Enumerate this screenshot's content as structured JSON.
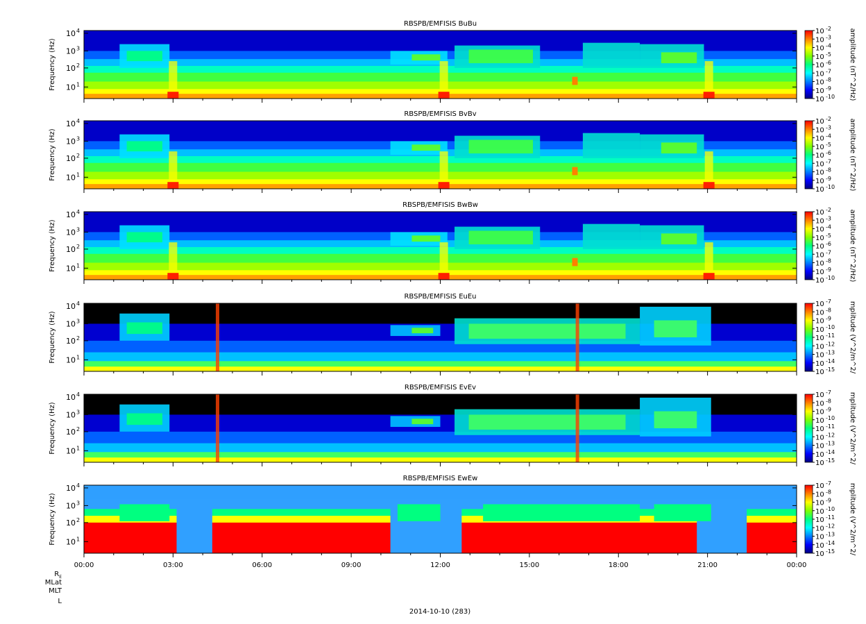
{
  "chart_data": [
    {
      "type": "heatmap",
      "title": "RBSPB/EMFISIS  BuBu",
      "ylabel": "Frequency (Hz)",
      "yscale": "log",
      "yticks": [
        "10",
        "10",
        "10",
        "10"
      ],
      "ytick_exponents": [
        "1",
        "2",
        "3",
        "4"
      ],
      "zlabel": "amplitude (nT^2/Hz)",
      "zticks": [
        "10",
        "10",
        "10",
        "10",
        "10",
        "10",
        "10",
        "10",
        "10"
      ],
      "ztick_exponents": [
        "-2",
        "-3",
        "-4",
        "-5",
        "-6",
        "-7",
        "-8",
        "-9",
        "-10"
      ],
      "zlim": [
        -10,
        -2
      ],
      "kind": "B"
    },
    {
      "type": "heatmap",
      "title": "RBSPB/EMFISIS  BvBv",
      "ylabel": "Frequency (Hz)",
      "yscale": "log",
      "yticks": [
        "10",
        "10",
        "10",
        "10"
      ],
      "ytick_exponents": [
        "1",
        "2",
        "3",
        "4"
      ],
      "zlabel": "amplitude (nT^2/Hz)",
      "zticks": [
        "10",
        "10",
        "10",
        "10",
        "10",
        "10",
        "10",
        "10",
        "10"
      ],
      "ztick_exponents": [
        "-2",
        "-3",
        "-4",
        "-5",
        "-6",
        "-7",
        "-8",
        "-9",
        "-10"
      ],
      "zlim": [
        -10,
        -2
      ],
      "kind": "B"
    },
    {
      "type": "heatmap",
      "title": "RBSPB/EMFISIS  BwBw",
      "ylabel": "Frequency (Hz)",
      "yscale": "log",
      "yticks": [
        "10",
        "10",
        "10",
        "10"
      ],
      "ytick_exponents": [
        "1",
        "2",
        "3",
        "4"
      ],
      "zlabel": "amplitude (nT^2/Hz)",
      "zticks": [
        "10",
        "10",
        "10",
        "10",
        "10",
        "10",
        "10",
        "10",
        "10"
      ],
      "ztick_exponents": [
        "-2",
        "-3",
        "-4",
        "-5",
        "-6",
        "-7",
        "-8",
        "-9",
        "-10"
      ],
      "zlim": [
        -10,
        -2
      ],
      "kind": "B"
    },
    {
      "type": "heatmap",
      "title": "RBSPB/EMFISIS  EuEu",
      "ylabel": "Frequency (Hz)",
      "yscale": "log",
      "yticks": [
        "10",
        "10",
        "10",
        "10"
      ],
      "ytick_exponents": [
        "1",
        "2",
        "3",
        "4"
      ],
      "zlabel": "mplitude (V^2/m^2/",
      "zticks": [
        "10",
        "10",
        "10",
        "10",
        "10",
        "10",
        "10",
        "10",
        "10"
      ],
      "ztick_exponents": [
        "-7",
        "-8",
        "-9",
        "-10",
        "-11",
        "-12",
        "-13",
        "-14",
        "-15"
      ],
      "zlim": [
        -15,
        -7
      ],
      "kind": "E"
    },
    {
      "type": "heatmap",
      "title": "RBSPB/EMFISIS  EvEv",
      "ylabel": "Frequency (Hz)",
      "yscale": "log",
      "yticks": [
        "10",
        "10",
        "10",
        "10"
      ],
      "ytick_exponents": [
        "1",
        "2",
        "3",
        "4"
      ],
      "zlabel": "mplitude (V^2/m^2/",
      "zticks": [
        "10",
        "10",
        "10",
        "10",
        "10",
        "10",
        "10",
        "10",
        "10"
      ],
      "ztick_exponents": [
        "-7",
        "-8",
        "-9",
        "-10",
        "-11",
        "-12",
        "-13",
        "-14",
        "-15"
      ],
      "zlim": [
        -15,
        -7
      ],
      "kind": "E"
    },
    {
      "type": "heatmap",
      "title": "RBSPB/EMFISIS  EwEw",
      "ylabel": "Frequency (Hz)",
      "yscale": "log",
      "yticks": [
        "10",
        "10",
        "10",
        "10"
      ],
      "ytick_exponents": [
        "1",
        "2",
        "3",
        "4"
      ],
      "zlabel": "mplitude (V^2/m^2/",
      "zticks": [
        "10",
        "10",
        "10",
        "10",
        "10",
        "10",
        "10",
        "10",
        "10"
      ],
      "ztick_exponents": [
        "-7",
        "-8",
        "-9",
        "-10",
        "-11",
        "-12",
        "-13",
        "-14",
        "-15"
      ],
      "zlim": [
        -15,
        -7
      ],
      "kind": "Ew"
    }
  ],
  "x_axis": {
    "ticks": [
      "00:00",
      "03:00",
      "06:00",
      "09:00",
      "12:00",
      "15:00",
      "18:00",
      "21:00",
      "00:00"
    ],
    "date_label": "2014-10-10 (283)",
    "ephemeris_labels": [
      "R",
      "MLat",
      "MLT",
      "L"
    ],
    "ephemeris_subscript": "E"
  },
  "colorscale": [
    "#000080",
    "#0000ff",
    "#0080ff",
    "#00ffff",
    "#00ff80",
    "#80ff00",
    "#ffff00",
    "#ff8000",
    "#ff0000"
  ]
}
